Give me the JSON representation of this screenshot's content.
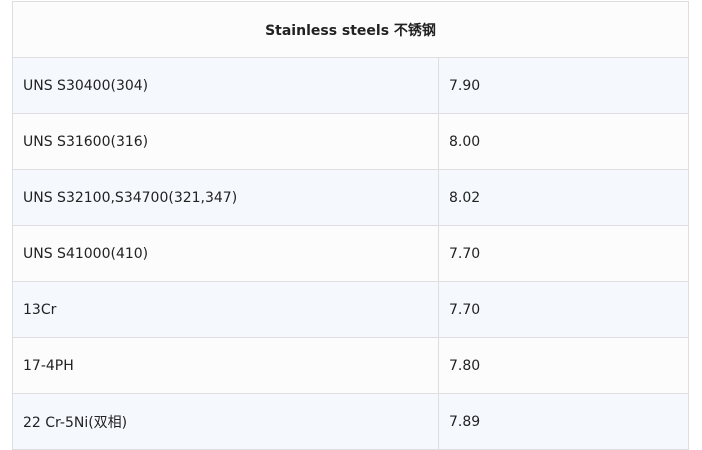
{
  "table": {
    "header": "Stainless steels 不锈钢",
    "rows": [
      {
        "material": "UNS S30400(304)",
        "value": "7.90"
      },
      {
        "material": "UNS S31600(316)",
        "value": "8.00"
      },
      {
        "material": "UNS S32100,S34700(321,347)",
        "value": "8.02"
      },
      {
        "material": "UNS S41000(410)",
        "value": "7.70"
      },
      {
        "material": "13Cr",
        "value": "7.70"
      },
      {
        "material": "17-4PH",
        "value": "7.80"
      },
      {
        "material": "22 Cr-5Ni(双相)",
        "value": "7.89"
      }
    ]
  },
  "colors": {
    "row_alt": "#f5f9fe",
    "row": "#fcfcfc",
    "border": "#dedede"
  }
}
